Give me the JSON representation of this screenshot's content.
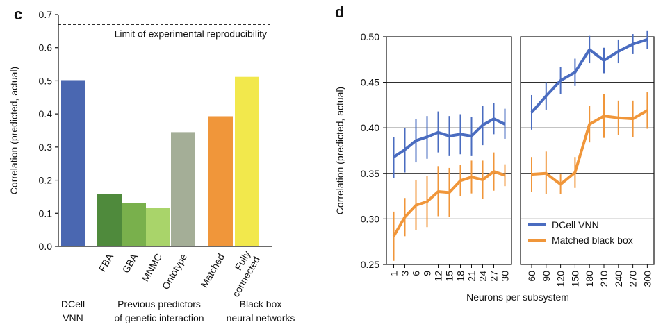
{
  "chart_data": [
    {
      "type": "bar",
      "panel_label": "c",
      "ylabel": "Correlation (predicted, actual)",
      "ylim": [
        0,
        0.7
      ],
      "yticks": [
        "0.0",
        "0.1",
        "0.2",
        "0.3",
        "0.4",
        "0.5",
        "0.6",
        "0.7"
      ],
      "reference_line": {
        "value": 0.67,
        "label": "Limit of experimental reproducibility"
      },
      "bars": [
        {
          "category": "DCell VNN",
          "tick_label": "",
          "value": 0.502,
          "color": "#4a67b1"
        },
        {
          "category": "FBA",
          "tick_label": "FBA",
          "value": 0.158,
          "color": "#4f8a3c"
        },
        {
          "category": "GBA",
          "tick_label": "GBA",
          "value": 0.131,
          "color": "#79b04c"
        },
        {
          "category": "MNMC",
          "tick_label": "MNMC",
          "value": 0.117,
          "color": "#a9d46a"
        },
        {
          "category": "Ontotype",
          "tick_label": "Ontotype",
          "value": 0.345,
          "color": "#a4ae97"
        },
        {
          "category": "Matched",
          "tick_label": "Matched",
          "value": 0.393,
          "color": "#f0963a"
        },
        {
          "category": "Fully connected",
          "tick_label_lines": [
            "Fully",
            "connected"
          ],
          "value": 0.512,
          "color": "#f2e84c"
        }
      ],
      "group_labels": [
        {
          "lines": [
            "DCell",
            "VNN"
          ]
        },
        {
          "lines": [
            "Previous predictors",
            "of genetic interaction"
          ]
        },
        {
          "lines": [
            "Black box",
            "neural networks"
          ]
        }
      ]
    },
    {
      "type": "line",
      "panel_label": "d",
      "ylabel": "Correlation (predicted, actual)",
      "xlabel": "Neurons per subsystem",
      "ylim": [
        0.25,
        0.5
      ],
      "yticks": [
        "0.25",
        "0.30",
        "0.35",
        "0.40",
        "0.45",
        "0.50"
      ],
      "grid_y": [
        0.3,
        0.35,
        0.4,
        0.45
      ],
      "legend": {
        "placement": "lower-right of right facet"
      },
      "facets": [
        {
          "x": [
            1,
            3,
            6,
            9,
            12,
            15,
            18,
            21,
            24,
            27,
            30
          ],
          "x_labels": [
            "1",
            "3",
            "6",
            "9",
            "12",
            "15",
            "18",
            "21",
            "24",
            "27",
            "30"
          ],
          "series": [
            {
              "name": "DCell VNN",
              "color": "#4a6cc0",
              "values": [
                0.368,
                0.376,
                0.386,
                0.39,
                0.395,
                0.391,
                0.393,
                0.391,
                0.403,
                0.41,
                0.404
              ],
              "err_low": [
                0.345,
                0.351,
                0.362,
                0.366,
                0.373,
                0.369,
                0.371,
                0.369,
                0.381,
                0.393,
                0.388
              ],
              "err_high": [
                0.39,
                0.4,
                0.41,
                0.413,
                0.418,
                0.413,
                0.415,
                0.412,
                0.424,
                0.427,
                0.421
              ]
            },
            {
              "name": "Matched black box",
              "color": "#f0963a",
              "values": [
                0.281,
                0.302,
                0.315,
                0.319,
                0.33,
                0.329,
                0.342,
                0.346,
                0.343,
                0.352,
                0.348
              ],
              "err_low": [
                0.254,
                0.281,
                0.288,
                0.291,
                0.303,
                0.302,
                0.325,
                0.328,
                0.322,
                0.331,
                0.336
              ],
              "err_high": [
                0.308,
                0.323,
                0.343,
                0.347,
                0.358,
                0.356,
                0.359,
                0.364,
                0.364,
                0.373,
                0.36
              ]
            }
          ]
        },
        {
          "x": [
            60,
            90,
            120,
            150,
            180,
            210,
            240,
            270,
            300
          ],
          "x_labels": [
            "60",
            "90",
            "120",
            "150",
            "180",
            "210",
            "240",
            "270",
            "300"
          ],
          "series": [
            {
              "name": "DCell VNN",
              "color": "#4a6cc0",
              "values": [
                0.417,
                0.435,
                0.452,
                0.461,
                0.486,
                0.474,
                0.484,
                0.492,
                0.497
              ],
              "err_low": [
                0.398,
                0.42,
                0.437,
                0.446,
                0.471,
                0.46,
                0.471,
                0.481,
                0.487
              ],
              "err_high": [
                0.436,
                0.45,
                0.467,
                0.476,
                0.501,
                0.488,
                0.497,
                0.503,
                0.507
              ]
            },
            {
              "name": "Matched black box",
              "color": "#f0963a",
              "values": [
                0.349,
                0.35,
                0.338,
                0.351,
                0.404,
                0.413,
                0.411,
                0.41,
                0.419
              ],
              "err_low": [
                0.33,
                0.327,
                0.327,
                0.334,
                0.384,
                0.389,
                0.392,
                0.39,
                0.399
              ],
              "err_high": [
                0.368,
                0.374,
                0.349,
                0.368,
                0.424,
                0.437,
                0.43,
                0.43,
                0.439
              ]
            }
          ]
        }
      ]
    }
  ]
}
